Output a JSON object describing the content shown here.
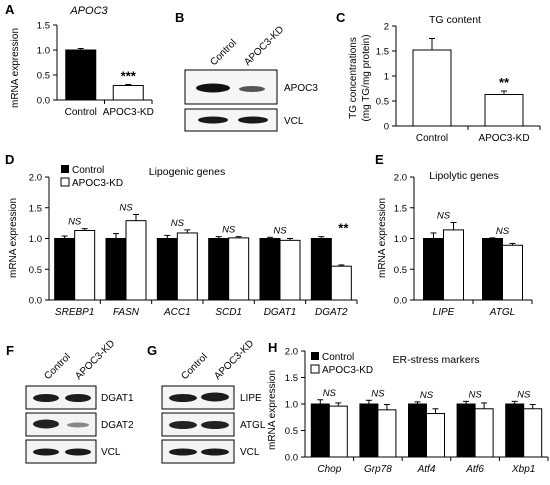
{
  "legend": {
    "control": "Control",
    "kd": "APOC3-KD"
  },
  "panels": {
    "a": {
      "letter": "A",
      "title": "APOC3",
      "ylabel": "mRNA expression"
    },
    "b": {
      "letter": "B",
      "lanes": [
        "Control",
        "APOC3-KD"
      ],
      "blots": [
        "APOC3",
        "VCL"
      ]
    },
    "c": {
      "letter": "C",
      "title": "TG content",
      "ylabel_line1": "TG concentrations",
      "ylabel_line2": "(mg TG/mg protein)"
    },
    "d": {
      "letter": "D",
      "title": "Lipogenic genes",
      "ylabel": "mRNA expression"
    },
    "e": {
      "letter": "E",
      "title": "Lipolytic genes",
      "ylabel": "mRNA expression"
    },
    "f": {
      "letter": "F",
      "lanes": [
        "Control",
        "APOC3-KD"
      ],
      "blots": [
        "DGAT1",
        "DGAT2",
        "VCL"
      ]
    },
    "g": {
      "letter": "G",
      "lanes": [
        "Control",
        "APOC3-KD"
      ],
      "blots": [
        "LIPE",
        "ATGL",
        "VCL"
      ]
    },
    "h": {
      "letter": "H",
      "title": "ER-stress markers",
      "ylabel": "mRNA expression"
    }
  },
  "chart_data": [
    {
      "id": "A",
      "type": "bar",
      "title": "APOC3",
      "ylabel": "mRNA expression",
      "categories": [
        "Control",
        "APOC3-KD"
      ],
      "italic_categories": false,
      "ylim": [
        0,
        1.5
      ],
      "yticks": [
        "0.0",
        "0.5",
        "1.0",
        "1.5"
      ],
      "series": [
        {
          "values": [
            1.0,
            0.29
          ],
          "errors": [
            0.03,
            0.02
          ],
          "fills": [
            "#000000",
            "#ffffff"
          ]
        }
      ],
      "annotations": [
        "",
        "***"
      ]
    },
    {
      "id": "C",
      "type": "bar",
      "title": "TG content",
      "ylabel": "TG concentrations (mg TG/mg protein)",
      "categories": [
        "Control",
        "APOC3-KD"
      ],
      "italic_categories": false,
      "ylim": [
        0,
        2
      ],
      "yticks": [
        "0",
        "0.5",
        "1",
        "1.5",
        "2"
      ],
      "series": [
        {
          "values": [
            1.52,
            0.63
          ],
          "errors": [
            0.23,
            0.07
          ],
          "fills": [
            "#ffffff",
            "#ffffff"
          ]
        }
      ],
      "annotations": [
        "",
        "**"
      ]
    },
    {
      "id": "D",
      "type": "bar",
      "title": "Lipogenic genes",
      "ylabel": "mRNA expression",
      "categories": [
        "SREBP1",
        "FASN",
        "ACC1",
        "SCD1",
        "DGAT1",
        "DGAT2"
      ],
      "italic_categories": true,
      "ylim": [
        0,
        2.0
      ],
      "yticks": [
        "0.0",
        "0.5",
        "1.0",
        "1.5",
        "2.0"
      ],
      "series": [
        {
          "name": "Control",
          "values": [
            1.0,
            1.0,
            1.0,
            1.0,
            1.0,
            1.0
          ],
          "errors": [
            0.04,
            0.08,
            0.05,
            0.03,
            0.02,
            0.03
          ]
        },
        {
          "name": "APOC3-KD",
          "values": [
            1.13,
            1.29,
            1.09,
            1.01,
            0.97,
            0.55
          ],
          "errors": [
            0.03,
            0.1,
            0.05,
            0.02,
            0.03,
            0.02
          ]
        }
      ],
      "annotations": [
        "NS",
        "NS",
        "NS",
        "NS",
        "NS",
        "**"
      ]
    },
    {
      "id": "E",
      "type": "bar",
      "title": "Lipolytic genes",
      "ylabel": "mRNA expression",
      "categories": [
        "LIPE",
        "ATGL"
      ],
      "italic_categories": true,
      "ylim": [
        0,
        2.0
      ],
      "yticks": [
        "0.0",
        "0.5",
        "1.0",
        "1.5",
        "2.0"
      ],
      "series": [
        {
          "name": "Control",
          "values": [
            1.0,
            1.0
          ],
          "errors": [
            0.09,
            0.01
          ]
        },
        {
          "name": "APOC3-KD",
          "values": [
            1.14,
            0.89
          ],
          "errors": [
            0.12,
            0.03
          ]
        }
      ],
      "annotations": [
        "NS",
        "NS"
      ]
    },
    {
      "id": "H",
      "type": "bar",
      "title": "ER-stress markers",
      "ylabel": "mRNA expression",
      "categories": [
        "Chop",
        "Grp78",
        "Atf4",
        "Atf6",
        "Xbp1"
      ],
      "italic_categories": true,
      "ylim": [
        0,
        2.0
      ],
      "yticks": [
        "0.0",
        "0.5",
        "1.0",
        "1.5",
        "2.0"
      ],
      "series": [
        {
          "name": "Control",
          "values": [
            1.0,
            1.0,
            1.0,
            1.0,
            1.0
          ],
          "errors": [
            0.08,
            0.07,
            0.04,
            0.05,
            0.05
          ]
        },
        {
          "name": "APOC3-KD",
          "values": [
            0.96,
            0.89,
            0.82,
            0.91,
            0.91
          ],
          "errors": [
            0.06,
            0.1,
            0.09,
            0.11,
            0.08
          ]
        }
      ],
      "annotations": [
        "NS",
        "NS",
        "NS",
        "NS",
        "NS"
      ]
    }
  ]
}
